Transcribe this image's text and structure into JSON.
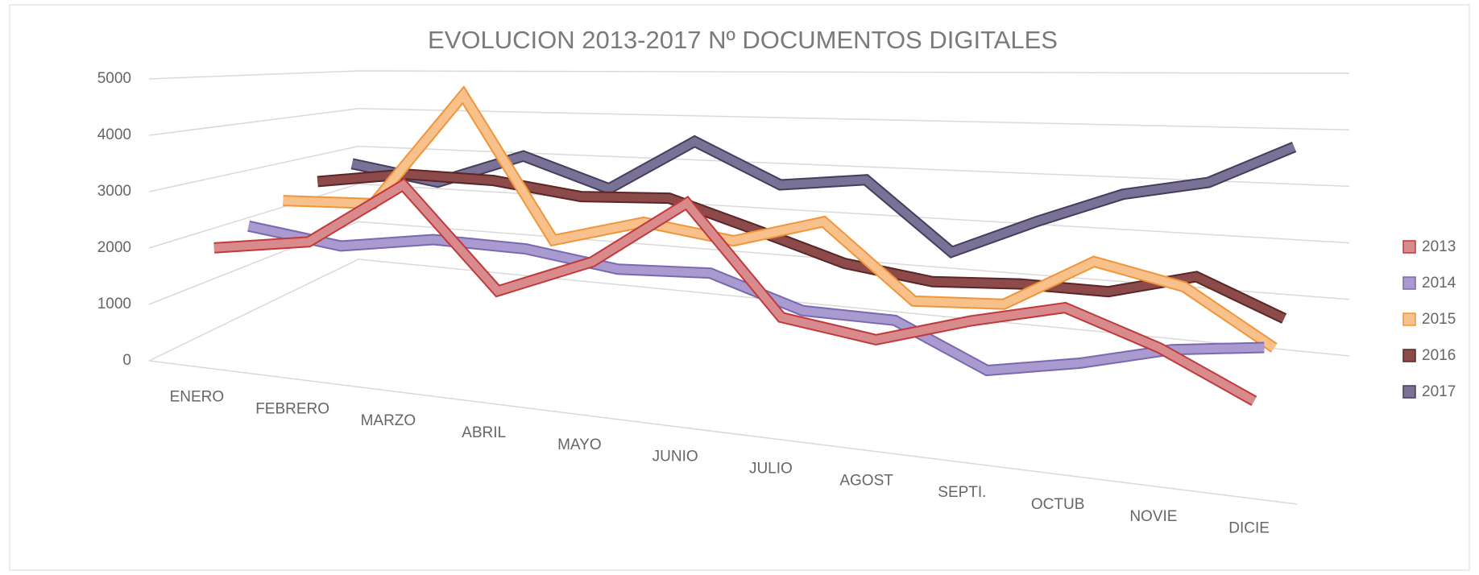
{
  "chart_data": {
    "type": "line3d",
    "title": "EVOLUCION  2013-2017 Nº DOCUMENTOS DIGITALES",
    "categories": [
      "ENERO",
      "FEBRERO",
      "MARZO",
      "ABRIL",
      "MAYO",
      "JUNIO",
      "JULIO",
      "AGOST",
      "SEPTI.",
      "OCTUB",
      "NOVIE",
      "DICIE"
    ],
    "series": [
      {
        "name": "2013",
        "color": "#d98a8c",
        "edge": "#c0393b",
        "values": [
          2000,
          2300,
          3500,
          1800,
          2500,
          3700,
          1900,
          1700,
          2200,
          2600,
          2100,
          1400
        ]
      },
      {
        "name": "2014",
        "color": "#a99bd0",
        "edge": "#7a68b0",
        "values": [
          2200,
          2000,
          2300,
          2300,
          2100,
          2200,
          1700,
          1700,
          1000,
          1300,
          1700,
          1900
        ]
      },
      {
        "name": "2015",
        "color": "#f8c08a",
        "edge": "#f0953a",
        "values": [
          2500,
          2600,
          4900,
          2200,
          2700,
          2500,
          3000,
          1700,
          1800,
          2700,
          2400,
          1500
        ]
      },
      {
        "name": "2016",
        "color": "#8c4a4a",
        "edge": "#5a2626",
        "values": [
          2700,
          3000,
          3000,
          2800,
          2900,
          2400,
          1900,
          1700,
          1800,
          1800,
          2200,
          1600
        ]
      },
      {
        "name": "2017",
        "color": "#7a7296",
        "edge": "#453d5e",
        "values": [
          2900,
          2600,
          3300,
          2700,
          3800,
          3000,
          3200,
          1900,
          2600,
          3200,
          3500,
          4200
        ]
      }
    ],
    "ylim": [
      0,
      5000
    ],
    "yticks": [
      0,
      1000,
      2000,
      3000,
      4000,
      5000
    ],
    "grid": true,
    "legend": "right"
  }
}
